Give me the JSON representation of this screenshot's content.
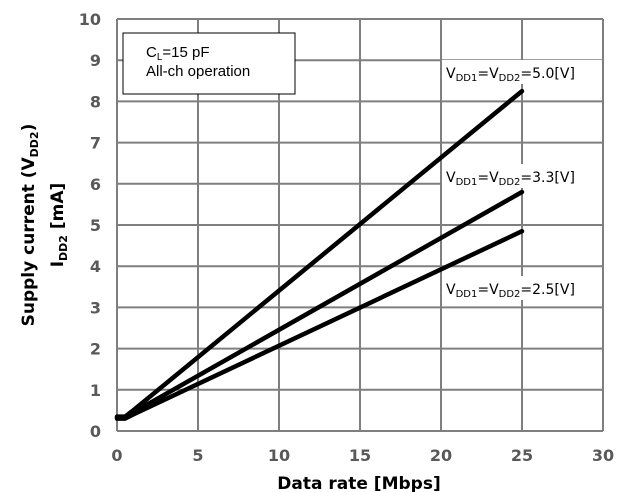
{
  "chart_data": {
    "type": "line",
    "xlabel": "Data rate [Mbps]",
    "ylabel": {
      "line1": "Supply current (V",
      "line1_sub": "DD2",
      "line1_end": ")",
      "line2": "I",
      "line2_sub": "DD2",
      "line2_end": " [mA]"
    },
    "xlim": [
      0,
      30
    ],
    "ylim": [
      0,
      10
    ],
    "xticks": [
      "0",
      "5",
      "10",
      "15",
      "20",
      "25",
      "30"
    ],
    "yticks": [
      "0",
      "1",
      "2",
      "3",
      "4",
      "5",
      "6",
      "7",
      "8",
      "9",
      "10"
    ],
    "grid": true,
    "note": {
      "line1_pre": "C",
      "line1_sub": "L",
      "line1_post": "=15 pF",
      "line2": "All-ch operation"
    },
    "series": [
      {
        "name": "VDD1=VDD2=5.0[V]",
        "label": {
          "a": "V",
          "a_sub": "DD1",
          "b": "=V",
          "b_sub": "DD2",
          "c": "=5.0[V]"
        },
        "x": [
          0,
          0.5,
          1,
          25
        ],
        "y": [
          0.35,
          0.35,
          0.5,
          8.25
        ]
      },
      {
        "name": "VDD1=VDD2=3.3[V]",
        "label": {
          "a": "V",
          "a_sub": "DD1",
          "b": "=V",
          "b_sub": "DD2",
          "c": "=3.3[V]"
        },
        "x": [
          0,
          0.5,
          1,
          25
        ],
        "y": [
          0.33,
          0.33,
          0.45,
          5.8
        ]
      },
      {
        "name": "VDD1=VDD2=2.5[V]",
        "label": {
          "a": "V",
          "a_sub": "DD1",
          "b": "=V",
          "b_sub": "DD2",
          "c": "=2.5[V]"
        },
        "x": [
          0,
          0.5,
          1,
          25
        ],
        "y": [
          0.3,
          0.3,
          0.4,
          4.85
        ]
      }
    ],
    "colors": {
      "line": "#000000",
      "grid": "#7f7f7f",
      "tick": "#595959"
    }
  }
}
